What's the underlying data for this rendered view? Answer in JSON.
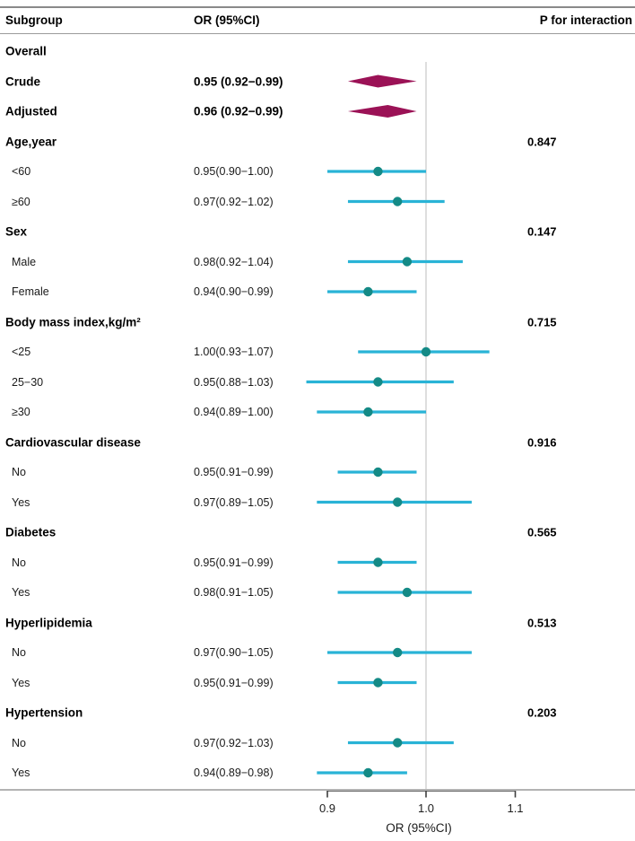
{
  "chart_data": {
    "type": "forest",
    "columns": {
      "subgroup": "Subgroup",
      "or": "OR (95%CI)",
      "p": "P for interaction"
    },
    "axis": {
      "scale": "log",
      "ticks": [
        0.9,
        1.0,
        1.1
      ],
      "tick_labels": [
        "0.9",
        "1.0",
        "1.1"
      ],
      "label": "OR (95%CI)",
      "ref_line": 1.0,
      "xlim": [
        0.85,
        1.18
      ]
    },
    "colors": {
      "ci_line": "#29b3d6",
      "point": "#148a86",
      "diamond": "#9b1256",
      "ref_line": "#c8c8c8",
      "axis": "#3d3d3d"
    },
    "rows": [
      {
        "type": "section",
        "label": "Overall",
        "or_text": "",
        "p": ""
      },
      {
        "type": "diamond",
        "label": "Crude",
        "or_text": "0.95 (0.92−0.99)",
        "est": 0.95,
        "lo": 0.92,
        "hi": 0.99,
        "p": ""
      },
      {
        "type": "diamond",
        "label": "Adjusted",
        "or_text": "0.96 (0.92−0.99)",
        "est": 0.96,
        "lo": 0.92,
        "hi": 0.99,
        "p": ""
      },
      {
        "type": "section",
        "label": "Age,year",
        "or_text": "",
        "p": "0.847"
      },
      {
        "type": "est",
        "label": "<60",
        "or_text": "0.95(0.90−1.00)",
        "est": 0.95,
        "lo": 0.9,
        "hi": 1.0,
        "p": ""
      },
      {
        "type": "est",
        "label": "≥60",
        "or_text": "0.97(0.92−1.02)",
        "est": 0.97,
        "lo": 0.92,
        "hi": 1.02,
        "p": ""
      },
      {
        "type": "section",
        "label": "Sex",
        "or_text": "",
        "p": "0.147"
      },
      {
        "type": "est",
        "label": "Male",
        "or_text": "0.98(0.92−1.04)",
        "est": 0.98,
        "lo": 0.92,
        "hi": 1.04,
        "p": ""
      },
      {
        "type": "est",
        "label": "Female",
        "or_text": "0.94(0.90−0.99)",
        "est": 0.94,
        "lo": 0.9,
        "hi": 0.99,
        "p": ""
      },
      {
        "type": "section",
        "label": "Body mass index,kg/m²",
        "or_text": "",
        "p": "0.715"
      },
      {
        "type": "est",
        "label": "<25",
        "or_text": "1.00(0.93−1.07)",
        "est": 1.0,
        "lo": 0.93,
        "hi": 1.07,
        "p": ""
      },
      {
        "type": "est",
        "label": "25−30",
        "or_text": "0.95(0.88−1.03)",
        "est": 0.95,
        "lo": 0.88,
        "hi": 1.03,
        "p": ""
      },
      {
        "type": "est",
        "label": "≥30",
        "or_text": "0.94(0.89−1.00)",
        "est": 0.94,
        "lo": 0.89,
        "hi": 1.0,
        "p": ""
      },
      {
        "type": "section",
        "label": "Cardiovascular disease",
        "or_text": "",
        "p": "0.916"
      },
      {
        "type": "est",
        "label": "No",
        "or_text": "0.95(0.91−0.99)",
        "est": 0.95,
        "lo": 0.91,
        "hi": 0.99,
        "p": ""
      },
      {
        "type": "est",
        "label": "Yes",
        "or_text": "0.97(0.89−1.05)",
        "est": 0.97,
        "lo": 0.89,
        "hi": 1.05,
        "p": ""
      },
      {
        "type": "section",
        "label": "Diabetes",
        "or_text": "",
        "p": "0.565"
      },
      {
        "type": "est",
        "label": "No",
        "or_text": "0.95(0.91−0.99)",
        "est": 0.95,
        "lo": 0.91,
        "hi": 0.99,
        "p": ""
      },
      {
        "type": "est",
        "label": "Yes",
        "or_text": "0.98(0.91−1.05)",
        "est": 0.98,
        "lo": 0.91,
        "hi": 1.05,
        "p": ""
      },
      {
        "type": "section",
        "label": "Hyperlipidemia",
        "or_text": "",
        "p": "0.513"
      },
      {
        "type": "est",
        "label": "No",
        "or_text": "0.97(0.90−1.05)",
        "est": 0.97,
        "lo": 0.9,
        "hi": 1.05,
        "p": ""
      },
      {
        "type": "est",
        "label": "Yes",
        "or_text": "0.95(0.91−0.99)",
        "est": 0.95,
        "lo": 0.91,
        "hi": 0.99,
        "p": ""
      },
      {
        "type": "section",
        "label": "Hypertension",
        "or_text": "",
        "p": "0.203"
      },
      {
        "type": "est",
        "label": "No",
        "or_text": "0.97(0.92−1.03)",
        "est": 0.97,
        "lo": 0.92,
        "hi": 1.03,
        "p": ""
      },
      {
        "type": "est",
        "label": "Yes",
        "or_text": "0.94(0.89−0.98)",
        "est": 0.94,
        "lo": 0.89,
        "hi": 0.98,
        "p": ""
      }
    ]
  }
}
